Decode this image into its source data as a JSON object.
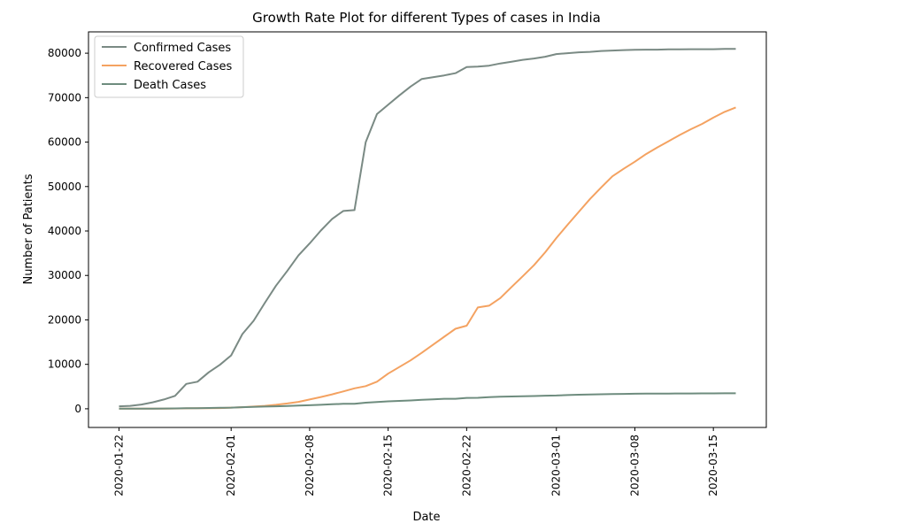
{
  "chart_data": {
    "type": "line",
    "title": "Growth Rate Plot for different Types of cases in India",
    "xlabel": "Date",
    "ylabel": "Number of Patients",
    "xlim": [
      "2020-01-22",
      "2020-03-17"
    ],
    "ylim": [
      -4200,
      84800
    ],
    "grid": false,
    "legend_position": "top-left",
    "xticks": [
      "2020-01-22",
      "2020-02-01",
      "2020-02-08",
      "2020-02-15",
      "2020-02-22",
      "2020-03-01",
      "2020-03-08",
      "2020-03-15"
    ],
    "yticks": [
      0,
      10000,
      20000,
      30000,
      40000,
      50000,
      60000,
      70000,
      80000
    ],
    "series": [
      {
        "name": "Confirmed Cases",
        "color": "#7a8a84",
        "x": [
          "2020-01-22",
          "2020-01-23",
          "2020-01-24",
          "2020-01-25",
          "2020-01-26",
          "2020-01-27",
          "2020-01-28",
          "2020-01-29",
          "2020-01-30",
          "2020-01-31",
          "2020-02-01",
          "2020-02-02",
          "2020-02-03",
          "2020-02-04",
          "2020-02-05",
          "2020-02-06",
          "2020-02-07",
          "2020-02-08",
          "2020-02-09",
          "2020-02-10",
          "2020-02-11",
          "2020-02-12",
          "2020-02-13",
          "2020-02-14",
          "2020-02-15",
          "2020-02-16",
          "2020-02-17",
          "2020-02-18",
          "2020-02-19",
          "2020-02-20",
          "2020-02-21",
          "2020-02-22",
          "2020-02-23",
          "2020-02-24",
          "2020-02-25",
          "2020-02-26",
          "2020-02-27",
          "2020-02-28",
          "2020-02-29",
          "2020-03-01",
          "2020-03-02",
          "2020-03-03",
          "2020-03-04",
          "2020-03-05",
          "2020-03-06",
          "2020-03-07",
          "2020-03-08",
          "2020-03-09",
          "2020-03-10",
          "2020-03-11",
          "2020-03-12",
          "2020-03-13",
          "2020-03-14",
          "2020-03-15",
          "2020-03-16",
          "2020-03-17"
        ],
        "values": [
          550,
          650,
          950,
          1450,
          2100,
          2900,
          5600,
          6100,
          8200,
          9900,
          12000,
          16800,
          19800,
          23800,
          27700,
          31000,
          34500,
          37200,
          40100,
          42700,
          44500,
          44700,
          60000,
          66300,
          68400,
          70500,
          72500,
          74200,
          74600,
          75000,
          75500,
          76900,
          77000,
          77200,
          77700,
          78100,
          78500,
          78800,
          79200,
          79800,
          80000,
          80200,
          80300,
          80500,
          80600,
          80700,
          80750,
          80800,
          80800,
          80850,
          80850,
          80900,
          80900,
          80900,
          80950,
          80950
        ]
      },
      {
        "name": "Recovered Cases",
        "color": "#f4a261",
        "x": [
          "2020-01-22",
          "2020-01-23",
          "2020-01-24",
          "2020-01-25",
          "2020-01-26",
          "2020-01-27",
          "2020-01-28",
          "2020-01-29",
          "2020-01-30",
          "2020-01-31",
          "2020-02-01",
          "2020-02-02",
          "2020-02-03",
          "2020-02-04",
          "2020-02-05",
          "2020-02-06",
          "2020-02-07",
          "2020-02-08",
          "2020-02-09",
          "2020-02-10",
          "2020-02-11",
          "2020-02-12",
          "2020-02-13",
          "2020-02-14",
          "2020-02-15",
          "2020-02-16",
          "2020-02-17",
          "2020-02-18",
          "2020-02-19",
          "2020-02-20",
          "2020-02-21",
          "2020-02-22",
          "2020-02-23",
          "2020-02-24",
          "2020-02-25",
          "2020-02-26",
          "2020-02-27",
          "2020-02-28",
          "2020-02-29",
          "2020-03-01",
          "2020-03-02",
          "2020-03-03",
          "2020-03-04",
          "2020-03-05",
          "2020-03-06",
          "2020-03-07",
          "2020-03-08",
          "2020-03-09",
          "2020-03-10",
          "2020-03-11",
          "2020-03-12",
          "2020-03-13",
          "2020-03-14",
          "2020-03-15",
          "2020-03-16",
          "2020-03-17"
        ],
        "values": [
          30,
          30,
          40,
          40,
          50,
          60,
          100,
          120,
          140,
          170,
          250,
          350,
          500,
          650,
          900,
          1200,
          1550,
          2100,
          2650,
          3250,
          3900,
          4600,
          5100,
          6100,
          7900,
          9400,
          10900,
          12600,
          14400,
          16200,
          18000,
          18700,
          22800,
          23200,
          24900,
          27400,
          29800,
          32300,
          35200,
          38400,
          41400,
          44300,
          47200,
          49800,
          52300,
          54000,
          55600,
          57300,
          58800,
          60200,
          61600,
          62900,
          64100,
          65500,
          66800,
          67800
        ]
      },
      {
        "name": "Death Cases",
        "color": "#6e8c7e",
        "x": [
          "2020-01-22",
          "2020-01-23",
          "2020-01-24",
          "2020-01-25",
          "2020-01-26",
          "2020-01-27",
          "2020-01-28",
          "2020-01-29",
          "2020-01-30",
          "2020-01-31",
          "2020-02-01",
          "2020-02-02",
          "2020-02-03",
          "2020-02-04",
          "2020-02-05",
          "2020-02-06",
          "2020-02-07",
          "2020-02-08",
          "2020-02-09",
          "2020-02-10",
          "2020-02-11",
          "2020-02-12",
          "2020-02-13",
          "2020-02-14",
          "2020-02-15",
          "2020-02-16",
          "2020-02-17",
          "2020-02-18",
          "2020-02-19",
          "2020-02-20",
          "2020-02-21",
          "2020-02-22",
          "2020-02-23",
          "2020-02-24",
          "2020-02-25",
          "2020-02-26",
          "2020-02-27",
          "2020-02-28",
          "2020-02-29",
          "2020-03-01",
          "2020-03-02",
          "2020-03-03",
          "2020-03-04",
          "2020-03-05",
          "2020-03-06",
          "2020-03-07",
          "2020-03-08",
          "2020-03-09",
          "2020-03-10",
          "2020-03-11",
          "2020-03-12",
          "2020-03-13",
          "2020-03-14",
          "2020-03-15",
          "2020-03-16",
          "2020-03-17"
        ],
        "values": [
          17,
          18,
          26,
          42,
          56,
          82,
          131,
          133,
          171,
          213,
          259,
          362,
          426,
          492,
          564,
          634,
          719,
          806,
          906,
          1013,
          1113,
          1118,
          1371,
          1523,
          1666,
          1770,
          1868,
          2007,
          2122,
          2247,
          2251,
          2458,
          2469,
          2629,
          2708,
          2770,
          2814,
          2872,
          2941,
          2996,
          3085,
          3160,
          3200,
          3260,
          3300,
          3340,
          3380,
          3400,
          3420,
          3430,
          3440,
          3450,
          3460,
          3470,
          3480,
          3490
        ]
      }
    ]
  }
}
